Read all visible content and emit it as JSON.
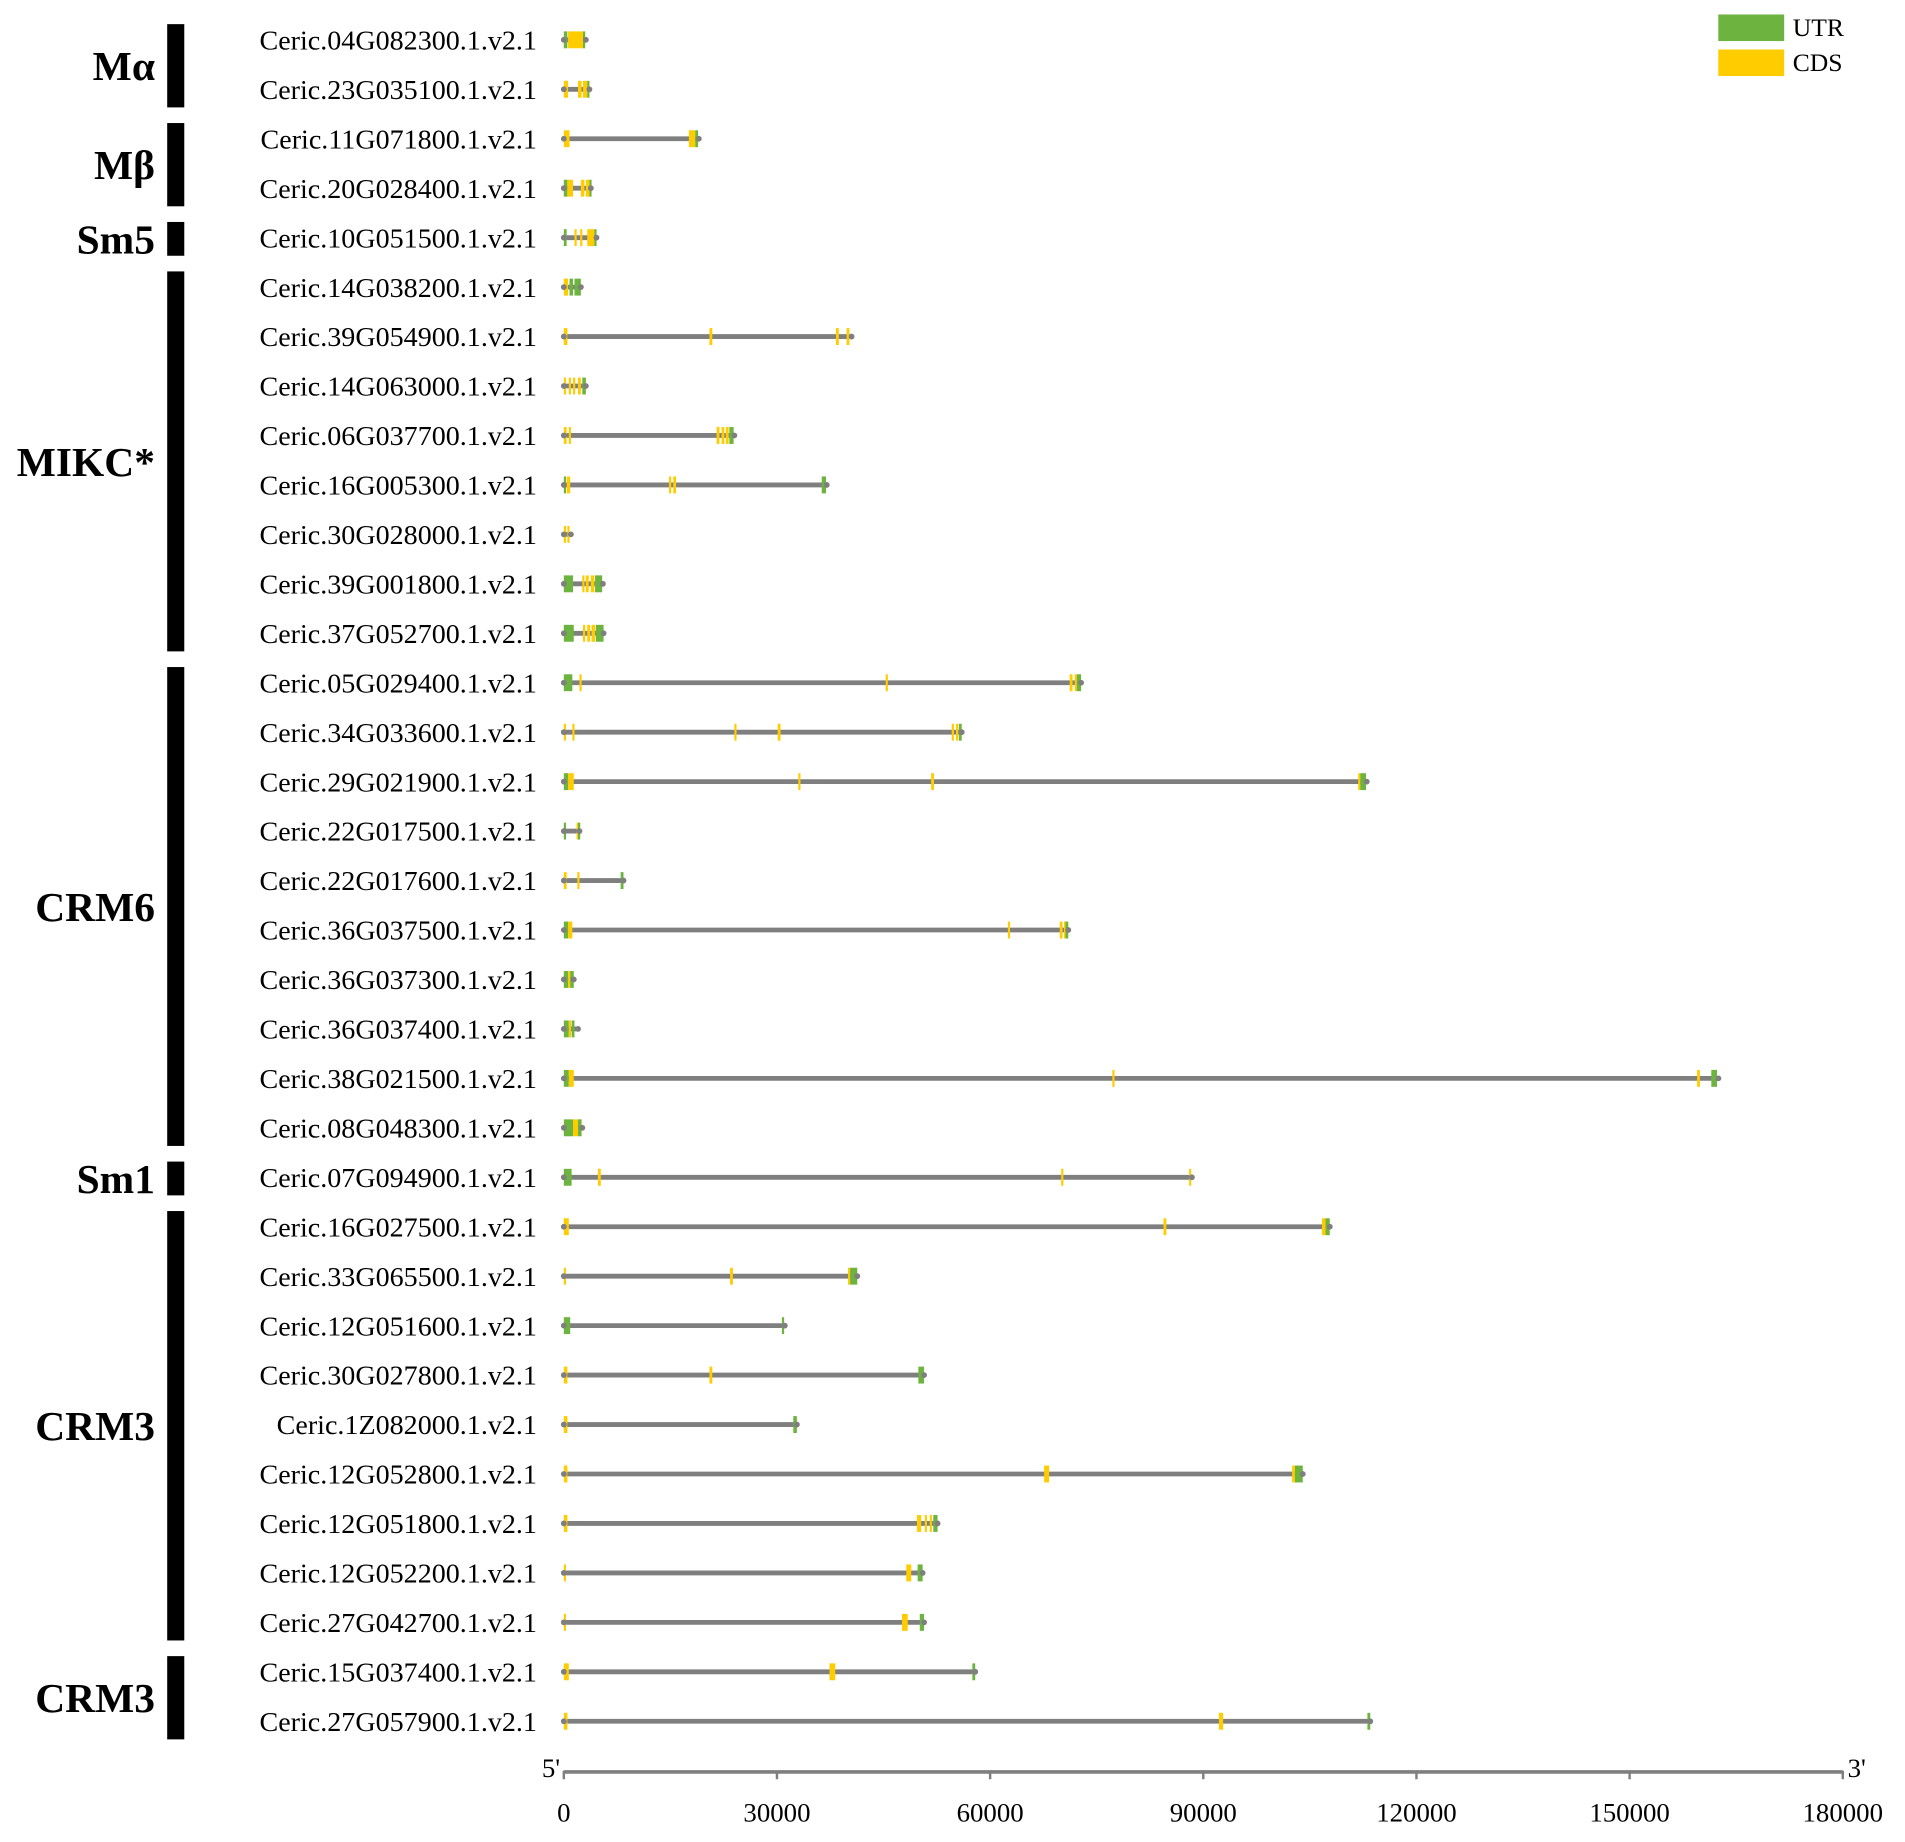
{
  "legend": [
    {
      "label": "UTR",
      "color": "#6db33f"
    },
    {
      "label": "CDS",
      "color": "#ffcc00"
    }
  ],
  "colors": {
    "intron": "#7f7f7f",
    "group_bar": "#000000"
  },
  "axis": {
    "start_label": "5'",
    "end_label": "3'",
    "range": [
      0,
      180000
    ],
    "ticks": [
      0,
      30000,
      60000,
      90000,
      120000,
      150000,
      180000
    ]
  },
  "groups": [
    {
      "name": "Mα",
      "rows": [
        0,
        1
      ]
    },
    {
      "name": "Mβ",
      "rows": [
        2,
        3
      ]
    },
    {
      "name": "Sm5",
      "rows": [
        4,
        4
      ]
    },
    {
      "name": "MIKC*",
      "rows": [
        5,
        12
      ]
    },
    {
      "name": "CRM6",
      "rows": [
        13,
        22
      ]
    },
    {
      "name": "Sm1",
      "rows": [
        23,
        23
      ]
    },
    {
      "name": "CRM3",
      "rows": [
        24,
        32
      ]
    },
    {
      "name": "CRM3",
      "rows": [
        33,
        34
      ]
    }
  ],
  "genes": [
    {
      "id": "Ceric.04G082300.1.v2.1",
      "length": 3100,
      "features": [
        [
          0,
          500,
          "UTR"
        ],
        [
          600,
          2700,
          "CDS"
        ],
        [
          2700,
          3000,
          "UTR"
        ]
      ]
    },
    {
      "id": "Ceric.23G035100.1.v2.1",
      "length": 3600,
      "features": [
        [
          0,
          600,
          "CDS"
        ],
        [
          2000,
          2500,
          "CDS"
        ],
        [
          2700,
          3300,
          "CDS"
        ],
        [
          3300,
          3600,
          "UTR"
        ]
      ]
    },
    {
      "id": "Ceric.11G071800.1.v2.1",
      "length": 19000,
      "features": [
        [
          0,
          800,
          "CDS"
        ],
        [
          17600,
          18500,
          "CDS"
        ],
        [
          18500,
          18900,
          "UTR"
        ]
      ]
    },
    {
      "id": "Ceric.20G028400.1.v2.1",
      "length": 3800,
      "features": [
        [
          0,
          500,
          "UTR"
        ],
        [
          500,
          1300,
          "CDS"
        ],
        [
          2400,
          2900,
          "CDS"
        ],
        [
          3100,
          3600,
          "CDS"
        ],
        [
          3600,
          3800,
          "UTR"
        ]
      ]
    },
    {
      "id": "Ceric.10G051500.1.v2.1",
      "length": 4600,
      "features": [
        [
          0,
          400,
          "UTR"
        ],
        [
          1500,
          1800,
          "CDS"
        ],
        [
          2300,
          2600,
          "CDS"
        ],
        [
          3300,
          4300,
          "CDS"
        ],
        [
          4300,
          4600,
          "UTR"
        ]
      ]
    },
    {
      "id": "Ceric.14G038200.1.v2.1",
      "length": 2400,
      "features": [
        [
          0,
          600,
          "CDS"
        ],
        [
          800,
          1300,
          "UTR"
        ],
        [
          1500,
          2400,
          "UTR"
        ]
      ]
    },
    {
      "id": "Ceric.39G054900.1.v2.1",
      "length": 40500,
      "features": [
        [
          0,
          500,
          "CDS"
        ],
        [
          20500,
          20900,
          "CDS"
        ],
        [
          38300,
          38700,
          "CDS"
        ],
        [
          39800,
          40200,
          "CDS"
        ]
      ]
    },
    {
      "id": "Ceric.14G063000.1.v2.1",
      "length": 3100,
      "features": [
        [
          0,
          300,
          "CDS"
        ],
        [
          700,
          1000,
          "CDS"
        ],
        [
          1300,
          1600,
          "CDS"
        ],
        [
          2000,
          2400,
          "CDS"
        ],
        [
          2600,
          3100,
          "UTR"
        ]
      ]
    },
    {
      "id": "Ceric.06G037700.1.v2.1",
      "length": 24000,
      "features": [
        [
          0,
          400,
          "CDS"
        ],
        [
          700,
          900,
          "CDS"
        ],
        [
          21500,
          21900,
          "CDS"
        ],
        [
          22200,
          22600,
          "CDS"
        ],
        [
          22800,
          23200,
          "CDS"
        ],
        [
          23300,
          23900,
          "UTR"
        ]
      ]
    },
    {
      "id": "Ceric.16G005300.1.v2.1",
      "length": 37000,
      "features": [
        [
          0,
          300,
          "UTR"
        ],
        [
          400,
          900,
          "CDS"
        ],
        [
          14800,
          15100,
          "CDS"
        ],
        [
          15400,
          15800,
          "CDS"
        ],
        [
          36300,
          36900,
          "UTR"
        ]
      ]
    },
    {
      "id": "Ceric.30G028000.1.v2.1",
      "length": 1000,
      "features": [
        [
          0,
          300,
          "CDS"
        ],
        [
          500,
          800,
          "CDS"
        ]
      ]
    },
    {
      "id": "Ceric.39G001800.1.v2.1",
      "length": 5500,
      "features": [
        [
          0,
          1300,
          "UTR"
        ],
        [
          2600,
          2800,
          "CDS"
        ],
        [
          3100,
          3500,
          "CDS"
        ],
        [
          3800,
          4300,
          "CDS"
        ],
        [
          4400,
          5400,
          "UTR"
        ]
      ]
    },
    {
      "id": "Ceric.37G052700.1.v2.1",
      "length": 5600,
      "features": [
        [
          0,
          1400,
          "UTR"
        ],
        [
          2700,
          2900,
          "CDS"
        ],
        [
          3300,
          3700,
          "CDS"
        ],
        [
          3900,
          4400,
          "CDS"
        ],
        [
          4500,
          5600,
          "UTR"
        ]
      ]
    },
    {
      "id": "Ceric.05G029400.1.v2.1",
      "length": 72800,
      "features": [
        [
          0,
          1200,
          "UTR"
        ],
        [
          2200,
          2500,
          "CDS"
        ],
        [
          45300,
          45500,
          "CDS"
        ],
        [
          71200,
          71600,
          "CDS"
        ],
        [
          71900,
          72200,
          "CDS"
        ],
        [
          72200,
          72800,
          "UTR"
        ]
      ]
    },
    {
      "id": "Ceric.34G033600.1.v2.1",
      "length": 56000,
      "features": [
        [
          0,
          200,
          "CDS"
        ],
        [
          1200,
          1500,
          "CDS"
        ],
        [
          24000,
          24200,
          "CDS"
        ],
        [
          30100,
          30500,
          "CDS"
        ],
        [
          54600,
          54900,
          "CDS"
        ],
        [
          55200,
          55500,
          "CDS"
        ],
        [
          55600,
          56000,
          "UTR"
        ]
      ]
    },
    {
      "id": "Ceric.29G021900.1.v2.1",
      "length": 113000,
      "features": [
        [
          0,
          600,
          "UTR"
        ],
        [
          600,
          1400,
          "CDS"
        ],
        [
          33000,
          33200,
          "CDS"
        ],
        [
          51700,
          52100,
          "CDS"
        ],
        [
          111800,
          112100,
          "CDS"
        ],
        [
          112100,
          112900,
          "UTR"
        ]
      ]
    },
    {
      "id": "Ceric.22G017500.1.v2.1",
      "length": 2200,
      "features": [
        [
          0,
          300,
          "UTR"
        ],
        [
          1800,
          2000,
          "CDS"
        ],
        [
          2000,
          2200,
          "UTR"
        ]
      ]
    },
    {
      "id": "Ceric.22G017600.1.v2.1",
      "length": 8400,
      "features": [
        [
          0,
          400,
          "CDS"
        ],
        [
          1900,
          2200,
          "CDS"
        ],
        [
          8000,
          8400,
          "UTR"
        ]
      ]
    },
    {
      "id": "Ceric.36G037500.1.v2.1",
      "length": 71000,
      "features": [
        [
          0,
          600,
          "UTR"
        ],
        [
          600,
          1200,
          "CDS"
        ],
        [
          62500,
          62700,
          "CDS"
        ],
        [
          69800,
          70200,
          "CDS"
        ],
        [
          70400,
          70600,
          "CDS"
        ],
        [
          70600,
          71000,
          "UTR"
        ]
      ]
    },
    {
      "id": "Ceric.36G037300.1.v2.1",
      "length": 1400,
      "features": [
        [
          0,
          600,
          "UTR"
        ],
        [
          600,
          900,
          "CDS"
        ],
        [
          900,
          1400,
          "UTR"
        ]
      ]
    },
    {
      "id": "Ceric.36G037400.1.v2.1",
      "length": 2000,
      "features": [
        [
          0,
          700,
          "UTR"
        ],
        [
          700,
          1000,
          "CDS"
        ],
        [
          1100,
          1500,
          "UTR"
        ]
      ]
    },
    {
      "id": "Ceric.38G021500.1.v2.1",
      "length": 162500,
      "features": [
        [
          0,
          700,
          "UTR"
        ],
        [
          700,
          1400,
          "CDS"
        ],
        [
          77200,
          77400,
          "CDS"
        ],
        [
          159500,
          159900,
          "CDS"
        ],
        [
          161500,
          162300,
          "UTR"
        ]
      ]
    },
    {
      "id": "Ceric.08G048300.1.v2.1",
      "length": 2600,
      "features": [
        [
          0,
          1300,
          "UTR"
        ],
        [
          1300,
          2000,
          "CDS"
        ],
        [
          2000,
          2500,
          "UTR"
        ]
      ]
    },
    {
      "id": "Ceric.07G094900.1.v2.1",
      "length": 88400,
      "features": [
        [
          0,
          1100,
          "UTR"
        ],
        [
          4800,
          5200,
          "CDS"
        ],
        [
          70000,
          70200,
          "CDS"
        ],
        [
          88000,
          88300,
          "CDS"
        ]
      ]
    },
    {
      "id": "Ceric.16G027500.1.v2.1",
      "length": 107800,
      "features": [
        [
          0,
          700,
          "CDS"
        ],
        [
          84400,
          84800,
          "CDS"
        ],
        [
          106700,
          107200,
          "CDS"
        ],
        [
          107200,
          107800,
          "UTR"
        ]
      ]
    },
    {
      "id": "Ceric.33G065500.1.v2.1",
      "length": 41300,
      "features": [
        [
          0,
          300,
          "CDS"
        ],
        [
          23400,
          23800,
          "CDS"
        ],
        [
          40000,
          40300,
          "CDS"
        ],
        [
          40300,
          41300,
          "UTR"
        ]
      ]
    },
    {
      "id": "Ceric.12G051600.1.v2.1",
      "length": 31100,
      "features": [
        [
          0,
          900,
          "UTR"
        ],
        [
          30700,
          31000,
          "UTR"
        ]
      ]
    },
    {
      "id": "Ceric.30G027800.1.v2.1",
      "length": 50700,
      "features": [
        [
          0,
          500,
          "CDS"
        ],
        [
          20500,
          20900,
          "CDS"
        ],
        [
          49900,
          50700,
          "UTR"
        ]
      ]
    },
    {
      "id": "Ceric.1Z082000.1.v2.1",
      "length": 32800,
      "features": [
        [
          0,
          500,
          "CDS"
        ],
        [
          32300,
          32800,
          "UTR"
        ]
      ]
    },
    {
      "id": "Ceric.12G052800.1.v2.1",
      "length": 104000,
      "features": [
        [
          0,
          500,
          "CDS"
        ],
        [
          67600,
          68300,
          "CDS"
        ],
        [
          102500,
          102900,
          "CDS"
        ],
        [
          102900,
          104000,
          "UTR"
        ]
      ]
    },
    {
      "id": "Ceric.12G051800.1.v2.1",
      "length": 52600,
      "features": [
        [
          0,
          500,
          "CDS"
        ],
        [
          49700,
          50300,
          "CDS"
        ],
        [
          50800,
          51100,
          "CDS"
        ],
        [
          51500,
          51800,
          "CDS"
        ],
        [
          52000,
          52600,
          "UTR"
        ]
      ]
    },
    {
      "id": "Ceric.12G052200.1.v2.1",
      "length": 50500,
      "features": [
        [
          0,
          200,
          "CDS"
        ],
        [
          48200,
          48900,
          "CDS"
        ],
        [
          49800,
          50500,
          "UTR"
        ]
      ]
    },
    {
      "id": "Ceric.27G042700.1.v2.1",
      "length": 50700,
      "features": [
        [
          0,
          200,
          "CDS"
        ],
        [
          47600,
          48400,
          "CDS"
        ],
        [
          50100,
          50700,
          "UTR"
        ]
      ]
    },
    {
      "id": "Ceric.15G037400.1.v2.1",
      "length": 57900,
      "features": [
        [
          0,
          700,
          "CDS"
        ],
        [
          37400,
          38200,
          "CDS"
        ],
        [
          57500,
          57900,
          "UTR"
        ]
      ]
    },
    {
      "id": "Ceric.27G057900.1.v2.1",
      "length": 113500,
      "features": [
        [
          0,
          500,
          "CDS"
        ],
        [
          92200,
          92800,
          "CDS"
        ],
        [
          113100,
          113500,
          "UTR"
        ]
      ]
    }
  ]
}
